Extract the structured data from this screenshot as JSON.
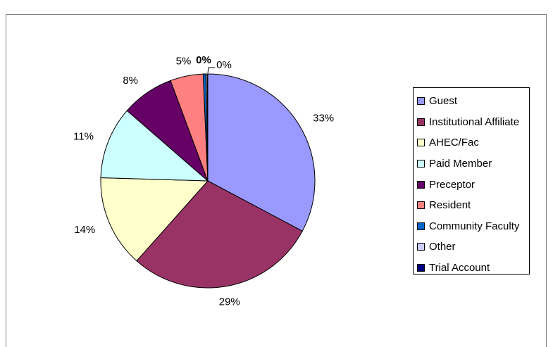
{
  "chart_data": {
    "type": "pie",
    "title": "",
    "slices": [
      {
        "name": "Guest",
        "percent": 33,
        "label": "33%",
        "color": "#9999ff"
      },
      {
        "name": "Institutional Affiliate",
        "percent": 29,
        "label": "29%",
        "color": "#993366"
      },
      {
        "name": "AHEC/Fac",
        "percent": 14,
        "label": "14%",
        "color": "#ffffcc"
      },
      {
        "name": "Paid Member",
        "percent": 11,
        "label": "11%",
        "color": "#ccffff"
      },
      {
        "name": "Preceptor",
        "percent": 8,
        "label": "8%",
        "color": "#660066"
      },
      {
        "name": "Resident",
        "percent": 5,
        "label": "5%",
        "color": "#ff8080"
      },
      {
        "name": "Community Faculty",
        "percent": 0.4,
        "label": "0%",
        "color": "#0066cc"
      },
      {
        "name": "Other",
        "percent": 0.2,
        "label": "0%",
        "color": "#ccccff"
      },
      {
        "name": "Trial Account",
        "percent": 0.1,
        "label": "0%",
        "color": "#000080"
      }
    ],
    "legend_position": "right"
  }
}
